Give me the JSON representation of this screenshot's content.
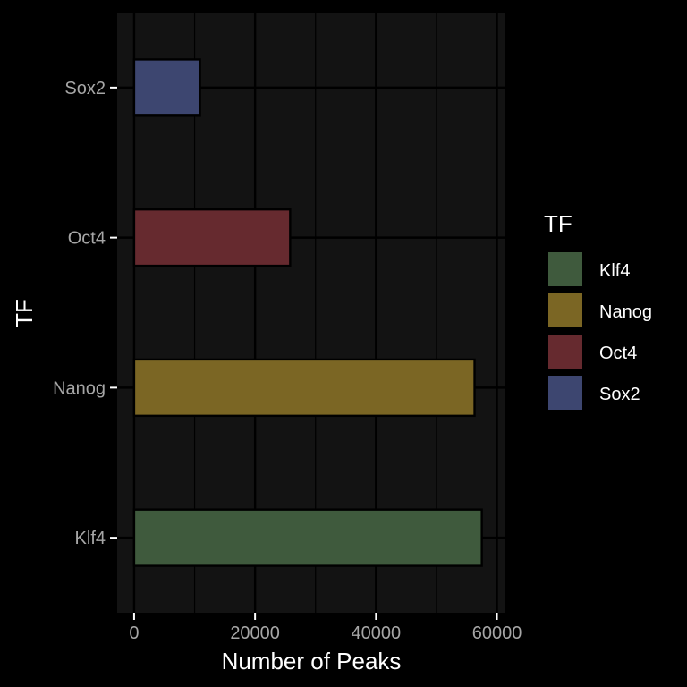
{
  "chart_data": {
    "type": "bar",
    "orientation": "horizontal",
    "categories": [
      "Klf4",
      "Nanog",
      "Oct4",
      "Sox2"
    ],
    "values": [
      57500,
      56300,
      25800,
      10900
    ],
    "xlabel": "Number of Peaks",
    "ylabel": "TF",
    "xlim": [
      -2800,
      61400
    ],
    "xticks": [
      0,
      20000,
      40000,
      60000
    ],
    "xtick_labels": [
      "0",
      "20000",
      "40000",
      "60000"
    ],
    "grid": true,
    "legend": {
      "title": "TF",
      "placement": "right",
      "entries": [
        "Klf4",
        "Nanog",
        "Oct4",
        "Sox2"
      ]
    },
    "colors": {
      "Klf4": "#3f5a3d",
      "Nanog": "#7b6624",
      "Oct4": "#662a2f",
      "Sox2": "#3d4670"
    },
    "theme": {
      "background": "#000000",
      "panel": "#131313",
      "grid": "#000000",
      "bar_outline": "#000000",
      "tick_text": "#a6a6a6",
      "title_text": "#ffffff"
    }
  }
}
